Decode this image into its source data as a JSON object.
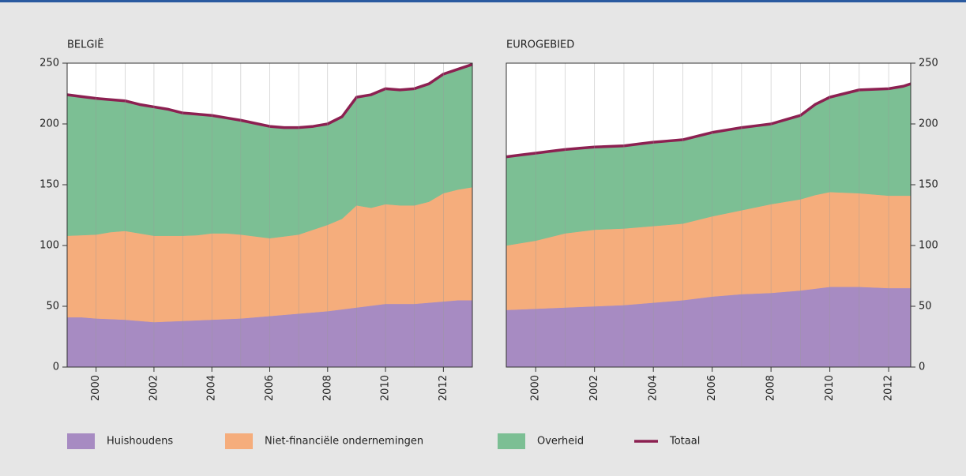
{
  "chart_data": [
    {
      "type": "area",
      "title": "BELGIË",
      "yaxis": "left",
      "x": [
        1999,
        1999.5,
        2000,
        2000.5,
        2001,
        2001.5,
        2002,
        2002.5,
        2003,
        2003.5,
        2004,
        2004.5,
        2005,
        2005.5,
        2006,
        2006.5,
        2007,
        2007.5,
        2008,
        2008.5,
        2009,
        2009.5,
        2010,
        2010.5,
        2011,
        2011.5,
        2012,
        2012.5,
        2013
      ],
      "xlim": [
        1999,
        2013
      ],
      "ylim": [
        0,
        250
      ],
      "yticks": [
        0,
        50,
        100,
        150,
        200,
        250
      ],
      "xticks": [
        2000,
        2002,
        2004,
        2006,
        2008,
        2010,
        2012
      ],
      "xgrid": [
        2000,
        2001,
        2002,
        2003,
        2004,
        2005,
        2006,
        2007,
        2008,
        2009,
        2010,
        2011,
        2012
      ],
      "series": [
        {
          "name": "Huishoudens",
          "color": "#a78bc2",
          "values": [
            41,
            41,
            40,
            39.5,
            39,
            38,
            37,
            37.5,
            38,
            38.5,
            39,
            39.5,
            40,
            41,
            42,
            43,
            44,
            45,
            46,
            47.5,
            49,
            50.5,
            52,
            52,
            52,
            53,
            54,
            55,
            55
          ]
        },
        {
          "name": "Niet-financiële ondernemingen",
          "color": "#f5ad7c",
          "values": [
            67,
            67.5,
            69,
            71.5,
            73,
            72,
            71,
            70.5,
            70,
            70,
            71,
            70.5,
            69,
            66.5,
            64,
            64.5,
            65,
            68,
            71,
            74.5,
            84,
            80.5,
            82,
            81,
            81,
            83,
            89,
            91,
            93
          ]
        },
        {
          "name": "Overheid",
          "color": "#7cbf94",
          "values": [
            116,
            114,
            112,
            109,
            107,
            106,
            106,
            104,
            101,
            99.5,
            97,
            95,
            94,
            93,
            92,
            89.5,
            88,
            85,
            83,
            84,
            89,
            93,
            95,
            95,
            96,
            97,
            98,
            99,
            101
          ]
        },
        {
          "name": "Totaal",
          "type": "line",
          "color": "#8c2051",
          "values": [
            224,
            222.5,
            221,
            220,
            219,
            216,
            214,
            212,
            209,
            208,
            207,
            205,
            203,
            200.5,
            198,
            197,
            197,
            198,
            200,
            206,
            222,
            224,
            229,
            228,
            229,
            233,
            241,
            245,
            249
          ]
        }
      ]
    },
    {
      "type": "area",
      "title": "EUROGEBIED",
      "yaxis": "right",
      "x": [
        1999,
        1999.5,
        2000,
        2000.5,
        2001,
        2001.5,
        2002,
        2002.5,
        2003,
        2003.5,
        2004,
        2004.5,
        2005,
        2005.5,
        2006,
        2006.5,
        2007,
        2007.5,
        2008,
        2008.5,
        2009,
        2009.5,
        2010,
        2010.5,
        2011,
        2011.5,
        2012,
        2012.5,
        2012.75
      ],
      "xlim": [
        1999,
        2012.75
      ],
      "ylim": [
        0,
        250
      ],
      "yticks": [
        0,
        50,
        100,
        150,
        200,
        250
      ],
      "xticks": [
        2000,
        2002,
        2004,
        2006,
        2008,
        2010,
        2012
      ],
      "xgrid": [
        2000,
        2001,
        2002,
        2003,
        2004,
        2005,
        2006,
        2007,
        2008,
        2009,
        2010,
        2011,
        2012
      ],
      "series": [
        {
          "color": "#a78bc2",
          "values": [
            47,
            47.5,
            48,
            48.5,
            49,
            49.5,
            50,
            50.5,
            51,
            52,
            53,
            54,
            55,
            56.5,
            58,
            59,
            60,
            60.5,
            61,
            62,
            63,
            64.5,
            66,
            66,
            66,
            65.5,
            65,
            65,
            65
          ]
        },
        {
          "color": "#f5ad7c",
          "values": [
            53,
            54.5,
            56,
            58.5,
            61,
            62,
            63,
            63,
            63,
            63,
            63,
            63,
            63,
            64.5,
            66,
            67.5,
            69,
            71,
            73,
            74,
            75,
            77,
            78,
            77.5,
            77,
            76.5,
            76,
            76,
            76
          ]
        },
        {
          "color": "#7cbf94",
          "values": [
            73,
            72.5,
            72,
            70.5,
            69,
            68.5,
            68,
            68,
            68,
            68.5,
            69,
            69,
            69,
            69,
            69,
            68.5,
            68,
            67,
            66,
            67.5,
            69,
            74.5,
            78,
            81.5,
            85,
            86.5,
            88,
            90,
            92
          ]
        },
        {
          "type": "line",
          "color": "#8c2051",
          "values": [
            173,
            174.5,
            176,
            177.5,
            179,
            180,
            181,
            181.5,
            182,
            183.5,
            185,
            186,
            187,
            190,
            193,
            195,
            197,
            198.5,
            200,
            203.5,
            207,
            216,
            222,
            225,
            228,
            228.5,
            229,
            231,
            233
          ]
        }
      ]
    }
  ]
}
